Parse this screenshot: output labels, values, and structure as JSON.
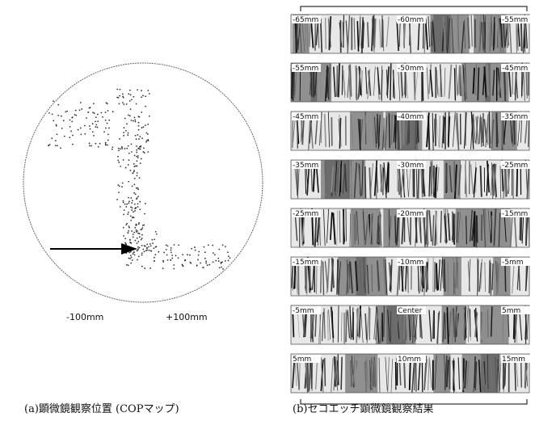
{
  "wafer": {
    "x_labels": [
      "-100mm",
      "+100mm"
    ],
    "caption": "(a)顕微鏡観察位置 (COPマップ)"
  },
  "micrographs": {
    "rows": [
      [
        "-65mm",
        "-60mm",
        "-55mm"
      ],
      [
        "-55mm",
        "-50mm",
        "-45mm"
      ],
      [
        "-45mm",
        "-40mm",
        "-35mm"
      ],
      [
        "-35mm",
        "-30mm",
        "-25mm"
      ],
      [
        "-25mm",
        "-20mm",
        "-15mm"
      ],
      [
        "-15mm",
        "-10mm",
        "-5mm"
      ],
      [
        "-5mm",
        "Center",
        "5mm"
      ],
      [
        "5mm",
        "10mm",
        "15mm"
      ]
    ],
    "caption": "(b)セコエッチ顕微鏡観察結果"
  }
}
